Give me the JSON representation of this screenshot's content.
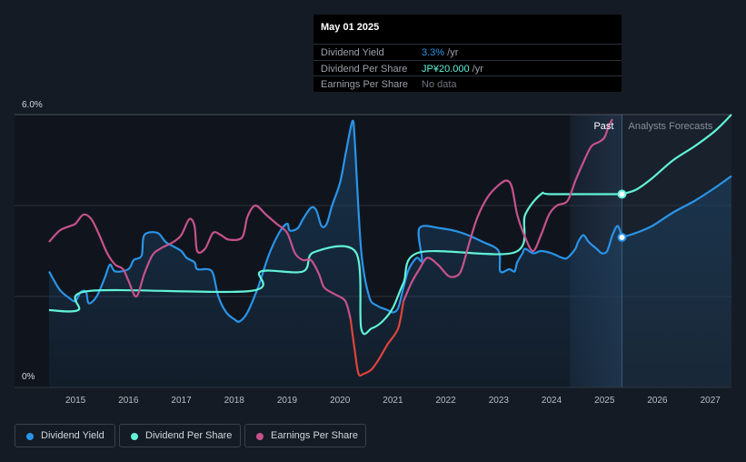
{
  "tooltip": {
    "date": "May 01 2025",
    "rows": [
      {
        "label": "Dividend Yield",
        "value": "3.3%",
        "unit": " /yr",
        "color": "#2a94e8"
      },
      {
        "label": "Dividend Per Share",
        "value": "JP¥20.000",
        "unit": " /yr",
        "color": "#61f2d7"
      },
      {
        "label": "Earnings Per Share",
        "value": "No data",
        "unit": "",
        "color": "#6e747c"
      }
    ]
  },
  "regions": {
    "past": "Past",
    "forecast": "Analysts Forecasts"
  },
  "legend": [
    {
      "label": "Dividend Yield",
      "color": "#2a94e8"
    },
    {
      "label": "Dividend Per Share",
      "color": "#61f2d7"
    },
    {
      "label": "Earnings Per Share",
      "color": "#c6528c"
    }
  ],
  "chart_data": {
    "type": "line",
    "x_range": [
      2014.5,
      2027.4
    ],
    "y_range": [
      0,
      6
    ],
    "y_tick_labels": [
      "6.0%",
      "0%"
    ],
    "x_tick_labels": [
      "2015",
      "2016",
      "2017",
      "2018",
      "2019",
      "2020",
      "2021",
      "2022",
      "2023",
      "2024",
      "2025",
      "2026",
      "2027"
    ],
    "past_end": 2025.33,
    "forecast_shade_start": 2024.35,
    "grid": true,
    "series": [
      {
        "name": "Dividend Yield",
        "color": "#2a94e8",
        "points": [
          [
            2014.5,
            2.55
          ],
          [
            2014.7,
            2.15
          ],
          [
            2014.9,
            1.95
          ],
          [
            2015.0,
            1.9
          ],
          [
            2015.1,
            2.1
          ],
          [
            2015.2,
            2.1
          ],
          [
            2015.25,
            1.85
          ],
          [
            2015.4,
            2.0
          ],
          [
            2015.55,
            2.4
          ],
          [
            2015.65,
            2.7
          ],
          [
            2015.75,
            2.55
          ],
          [
            2016.0,
            2.6
          ],
          [
            2016.1,
            2.8
          ],
          [
            2016.25,
            2.9
          ],
          [
            2016.3,
            3.35
          ],
          [
            2016.55,
            3.4
          ],
          [
            2016.7,
            3.2
          ],
          [
            2016.85,
            3.1
          ],
          [
            2017.0,
            3.0
          ],
          [
            2017.1,
            2.85
          ],
          [
            2017.25,
            2.75
          ],
          [
            2017.3,
            2.6
          ],
          [
            2017.5,
            2.6
          ],
          [
            2017.6,
            2.5
          ],
          [
            2017.7,
            2.0
          ],
          [
            2017.85,
            1.65
          ],
          [
            2018.0,
            1.5
          ],
          [
            2018.1,
            1.45
          ],
          [
            2018.25,
            1.65
          ],
          [
            2018.45,
            2.2
          ],
          [
            2018.65,
            2.9
          ],
          [
            2018.85,
            3.4
          ],
          [
            2019.0,
            3.6
          ],
          [
            2019.05,
            3.45
          ],
          [
            2019.2,
            3.5
          ],
          [
            2019.3,
            3.7
          ],
          [
            2019.45,
            3.95
          ],
          [
            2019.55,
            3.9
          ],
          [
            2019.65,
            3.55
          ],
          [
            2019.75,
            3.6
          ],
          [
            2019.85,
            4.0
          ],
          [
            2020.0,
            4.5
          ],
          [
            2020.1,
            5.1
          ],
          [
            2020.2,
            5.7
          ],
          [
            2020.25,
            5.85
          ],
          [
            2020.28,
            5.4
          ],
          [
            2020.4,
            3.0
          ],
          [
            2020.55,
            2.0
          ],
          [
            2020.7,
            1.8
          ],
          [
            2020.9,
            1.7
          ],
          [
            2021.0,
            1.65
          ],
          [
            2021.1,
            1.75
          ],
          [
            2021.2,
            2.2
          ],
          [
            2021.3,
            2.6
          ],
          [
            2021.45,
            2.85
          ],
          [
            2021.55,
            2.8
          ],
          [
            2021.5,
            3.5
          ],
          [
            2021.9,
            3.5
          ],
          [
            2022.3,
            3.4
          ],
          [
            2022.7,
            3.2
          ],
          [
            2023.0,
            3.0
          ],
          [
            2023.03,
            2.55
          ],
          [
            2023.2,
            2.6
          ],
          [
            2023.3,
            2.55
          ],
          [
            2023.35,
            2.75
          ],
          [
            2023.45,
            2.95
          ],
          [
            2023.5,
            3.05
          ],
          [
            2023.65,
            2.95
          ],
          [
            2023.8,
            3.0
          ],
          [
            2024.0,
            2.95
          ],
          [
            2024.2,
            2.85
          ],
          [
            2024.3,
            2.85
          ],
          [
            2024.45,
            3.05
          ],
          [
            2024.5,
            3.2
          ],
          [
            2024.6,
            3.35
          ],
          [
            2024.7,
            3.2
          ],
          [
            2024.85,
            3.05
          ],
          [
            2024.95,
            2.95
          ],
          [
            2025.05,
            3.0
          ],
          [
            2025.15,
            3.35
          ],
          [
            2025.25,
            3.55
          ],
          [
            2025.33,
            3.3
          ]
        ]
      },
      {
        "name": "Dividend Yield Forecast",
        "color": "#2a94e8",
        "points": [
          [
            2025.33,
            3.3
          ],
          [
            2025.6,
            3.4
          ],
          [
            2025.9,
            3.55
          ],
          [
            2026.3,
            3.85
          ],
          [
            2026.7,
            4.1
          ],
          [
            2027.1,
            4.4
          ],
          [
            2027.4,
            4.65
          ]
        ]
      },
      {
        "name": "Dividend Per Share",
        "color": "#61f2d7",
        "points": [
          [
            2014.5,
            1.7
          ],
          [
            2015.05,
            1.7
          ],
          [
            2015.25,
            2.12
          ],
          [
            2018.3,
            2.12
          ],
          [
            2018.5,
            2.55
          ],
          [
            2019.3,
            2.55
          ],
          [
            2019.5,
            2.97
          ],
          [
            2020.3,
            2.97
          ],
          [
            2020.4,
            1.3
          ],
          [
            2020.6,
            1.3
          ],
          [
            2020.8,
            1.45
          ],
          [
            2021.0,
            1.75
          ],
          [
            2021.2,
            2.3
          ],
          [
            2021.5,
            2.97
          ],
          [
            2023.3,
            2.97
          ],
          [
            2023.5,
            3.8
          ],
          [
            2023.8,
            4.25
          ],
          [
            2024.0,
            4.25
          ],
          [
            2025.33,
            4.25
          ]
        ]
      },
      {
        "name": "Dividend Per Share Forecast",
        "color": "#61f2d7",
        "points": [
          [
            2025.33,
            4.25
          ],
          [
            2025.6,
            4.35
          ],
          [
            2025.9,
            4.6
          ],
          [
            2026.3,
            5.0
          ],
          [
            2026.7,
            5.3
          ],
          [
            2027.1,
            5.65
          ],
          [
            2027.4,
            6.0
          ]
        ]
      },
      {
        "name": "Earnings Per Share",
        "color": "#c6528c",
        "points": [
          [
            2014.5,
            3.2
          ],
          [
            2014.7,
            3.45
          ],
          [
            2014.9,
            3.55
          ],
          [
            2015.0,
            3.6
          ],
          [
            2015.15,
            3.8
          ],
          [
            2015.3,
            3.7
          ],
          [
            2015.45,
            3.35
          ],
          [
            2015.6,
            2.95
          ],
          [
            2015.75,
            2.7
          ],
          [
            2015.9,
            2.6
          ],
          [
            2016.0,
            2.35
          ],
          [
            2016.15,
            2.0
          ],
          [
            2016.3,
            2.5
          ],
          [
            2016.45,
            2.9
          ],
          [
            2016.6,
            3.05
          ],
          [
            2016.85,
            3.2
          ],
          [
            2017.0,
            3.35
          ],
          [
            2017.15,
            3.7
          ],
          [
            2017.25,
            3.55
          ],
          [
            2017.3,
            3.0
          ],
          [
            2017.45,
            3.05
          ],
          [
            2017.6,
            3.4
          ],
          [
            2017.75,
            3.35
          ],
          [
            2017.9,
            3.25
          ],
          [
            2018.15,
            3.3
          ],
          [
            2018.25,
            3.75
          ],
          [
            2018.4,
            4.0
          ],
          [
            2018.6,
            3.8
          ],
          [
            2018.8,
            3.6
          ],
          [
            2019.0,
            3.4
          ],
          [
            2019.15,
            2.95
          ],
          [
            2019.3,
            2.8
          ],
          [
            2019.45,
            2.8
          ],
          [
            2019.6,
            2.5
          ],
          [
            2019.7,
            2.2
          ],
          [
            2019.9,
            2.05
          ],
          [
            2020.1,
            1.9
          ],
          [
            2020.2,
            1.5
          ],
          [
            2020.28,
            0.8
          ],
          [
            2020.35,
            0.3
          ],
          [
            2020.45,
            0.3
          ],
          [
            2020.6,
            0.4
          ],
          [
            2020.75,
            0.65
          ],
          [
            2020.9,
            0.95
          ],
          [
            2021.1,
            1.3
          ],
          [
            2021.2,
            1.9
          ],
          [
            2021.35,
            2.3
          ],
          [
            2021.5,
            2.6
          ],
          [
            2021.65,
            2.85
          ],
          [
            2021.85,
            2.7
          ],
          [
            2022.05,
            2.45
          ],
          [
            2022.2,
            2.45
          ],
          [
            2022.3,
            2.6
          ],
          [
            2022.45,
            3.2
          ],
          [
            2022.6,
            3.75
          ],
          [
            2022.8,
            4.2
          ],
          [
            2023.0,
            4.45
          ],
          [
            2023.15,
            4.55
          ],
          [
            2023.25,
            4.4
          ],
          [
            2023.35,
            3.8
          ],
          [
            2023.5,
            3.3
          ],
          [
            2023.65,
            3.0
          ],
          [
            2023.8,
            3.35
          ],
          [
            2023.95,
            3.8
          ],
          [
            2024.1,
            4.0
          ],
          [
            2024.3,
            4.1
          ],
          [
            2024.45,
            4.55
          ],
          [
            2024.6,
            4.95
          ],
          [
            2024.75,
            5.3
          ],
          [
            2024.9,
            5.4
          ],
          [
            2025.0,
            5.5
          ],
          [
            2025.08,
            5.75
          ],
          [
            2025.15,
            5.9
          ]
        ]
      }
    ]
  }
}
